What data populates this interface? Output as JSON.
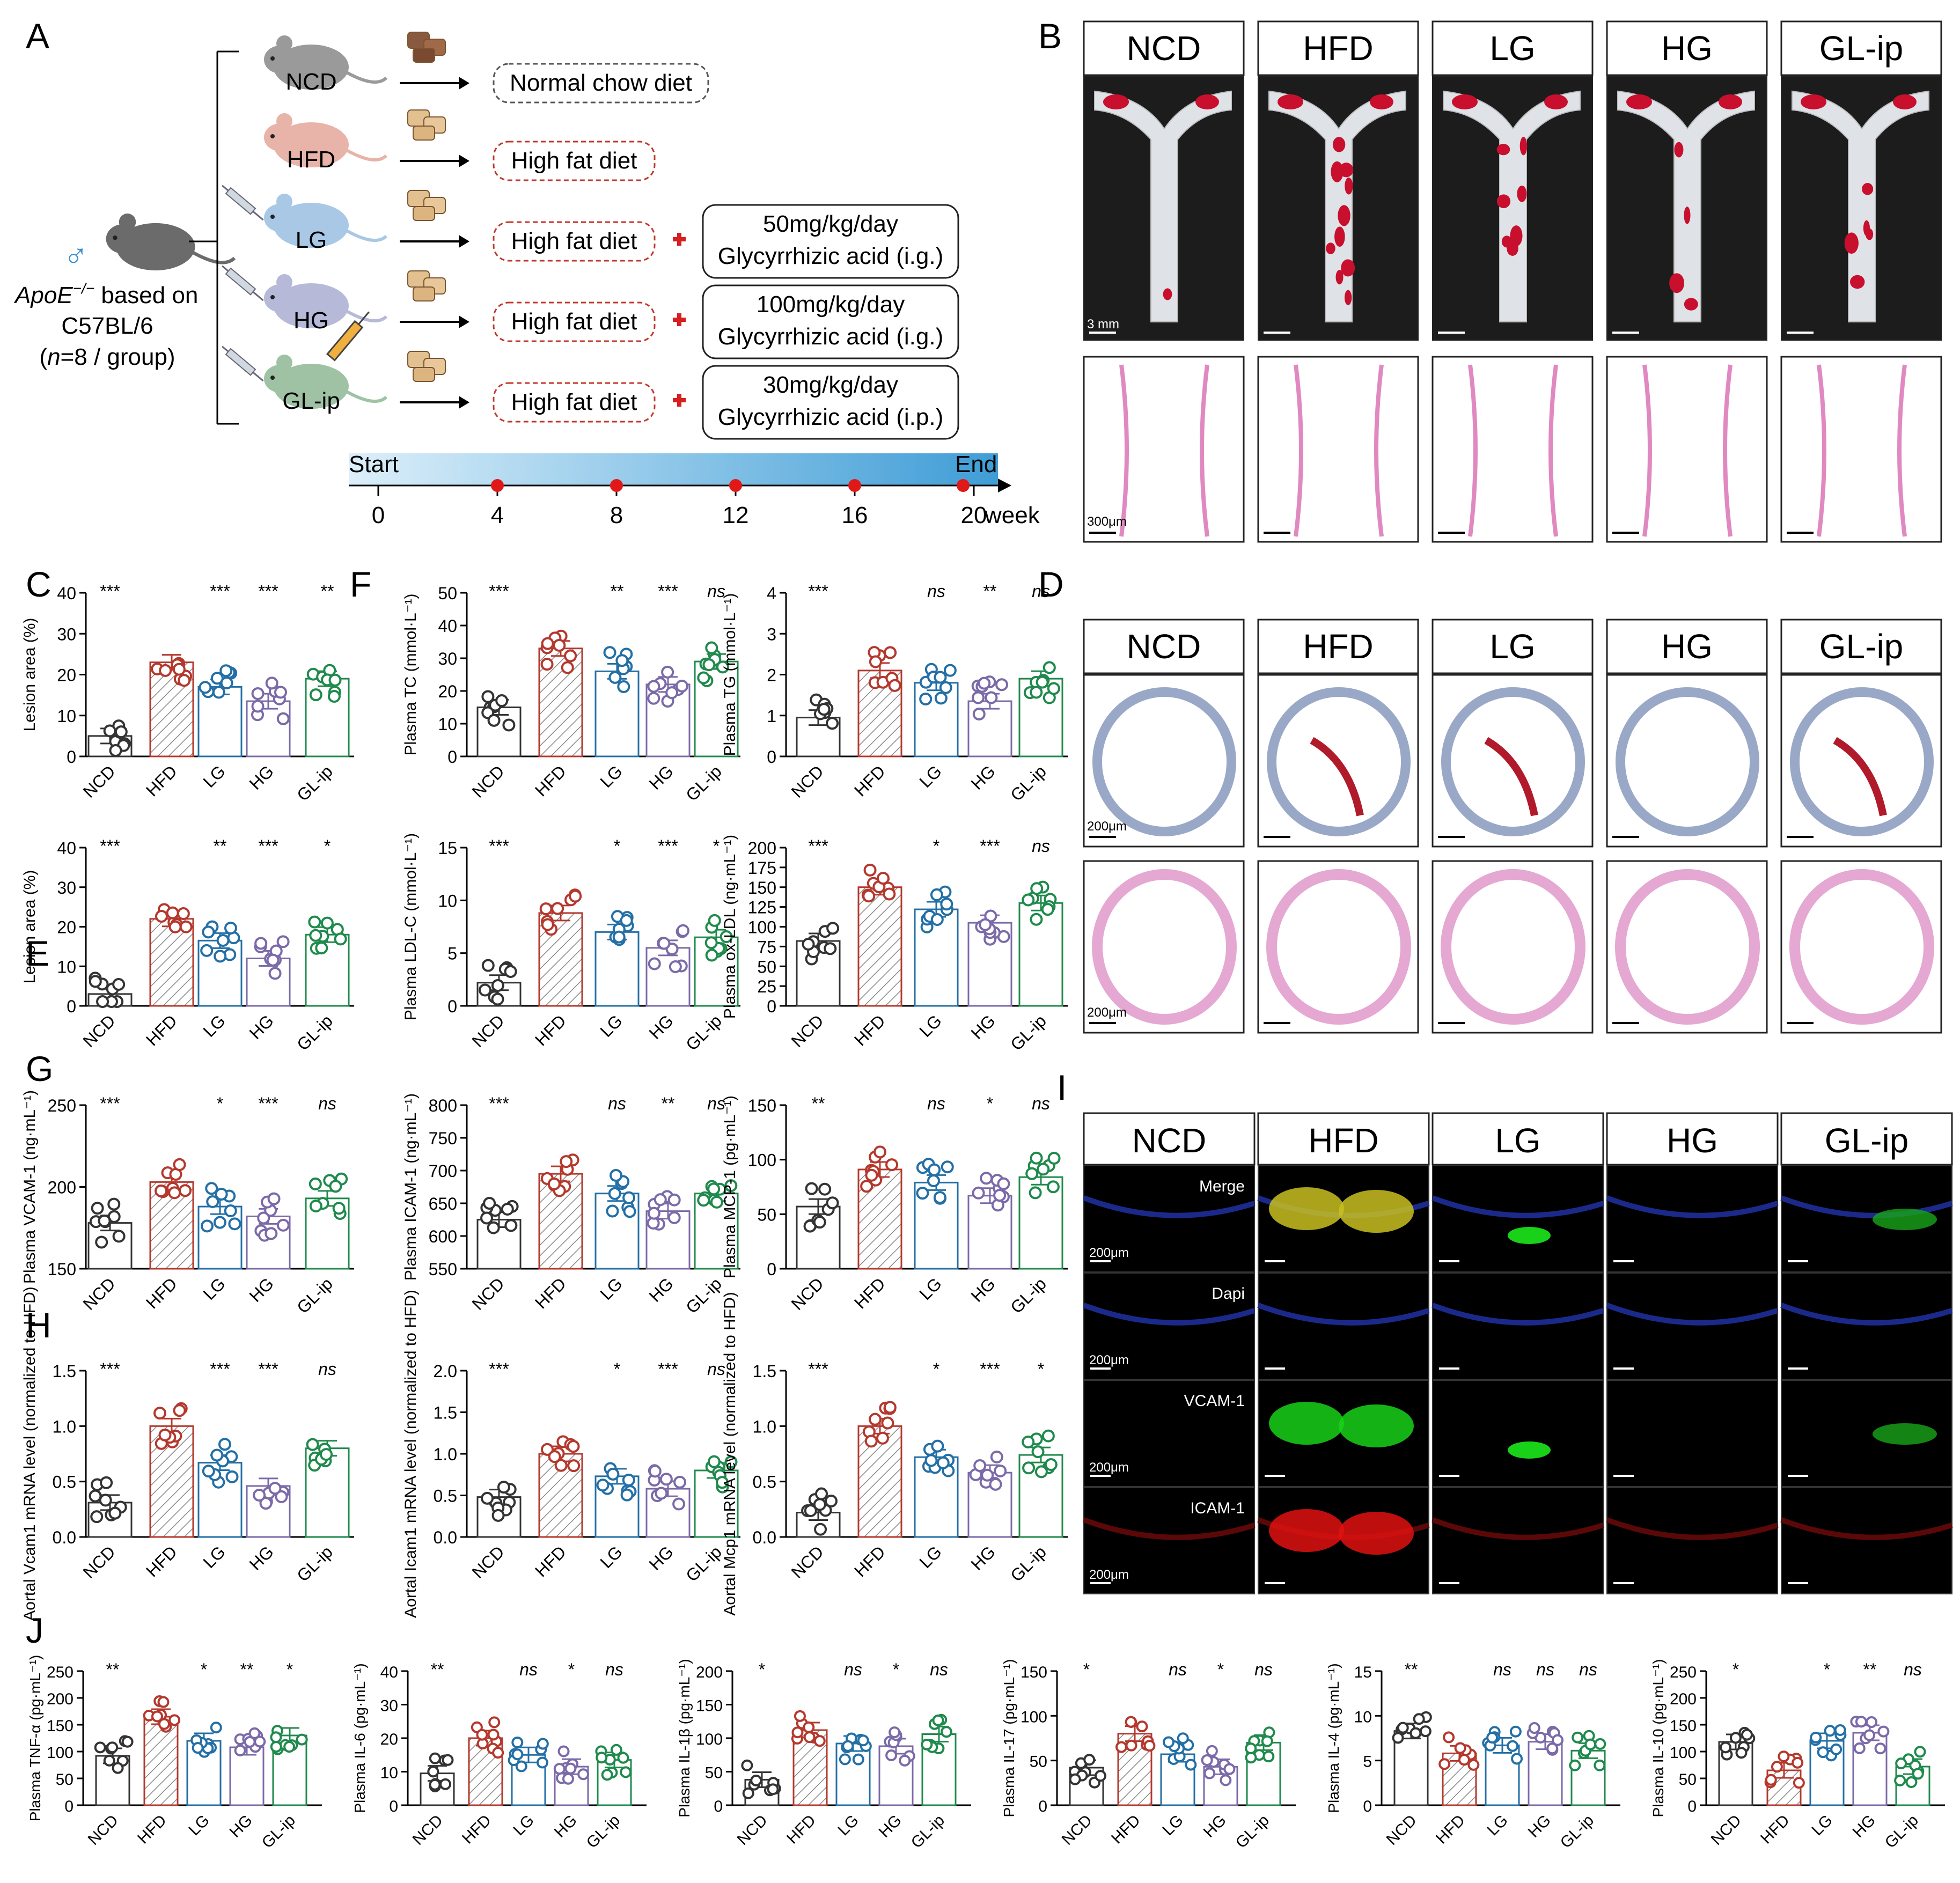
{
  "panel_letters": [
    "A",
    "B",
    "C",
    "D",
    "E",
    "F",
    "G",
    "H",
    "I",
    "J"
  ],
  "groups": [
    "NCD",
    "HFD",
    "LG",
    "HG",
    "GL-ip"
  ],
  "colors": {
    "NCD": "#333333",
    "HFD": "#b5382d",
    "LG": "#236fa6",
    "HG": "#7b6aa8",
    "GL-ip": "#1f8a4c",
    "stroke": "#111111"
  },
  "panelA": {
    "species_symbol": "♂",
    "mouse_line1": "ApoE",
    "mouse_sup": "−/−",
    "mouse_line1_suffix": " based on",
    "mouse_line2": "C57BL/6",
    "mouse_line3_pre": "(",
    "mouse_line3_n": "n",
    "mouse_line3_post": "=8 / group)",
    "rows": [
      {
        "group": "NCD",
        "diet": "Normal chow diet",
        "treatment_dose": "",
        "treatment_name": "",
        "syringe": false
      },
      {
        "group": "HFD",
        "diet": "High fat diet",
        "treatment_dose": "",
        "treatment_name": "",
        "syringe": false
      },
      {
        "group": "LG",
        "diet": "High fat diet",
        "treatment_dose": "50mg/kg/day",
        "treatment_name": "Glycyrrhizic acid (i.g.)",
        "syringe": true
      },
      {
        "group": "HG",
        "diet": "High fat diet",
        "treatment_dose": "100mg/kg/day",
        "treatment_name": "Glycyrrhizic acid (i.g.)",
        "syringe": true
      },
      {
        "group": "GL-ip",
        "diet": "High fat diet",
        "treatment_dose": "30mg/kg/day",
        "treatment_name": "Glycyrrhizic acid (i.p.)",
        "syringe": true
      }
    ],
    "timeline": {
      "start_label": "Start",
      "end_label": "End",
      "ticks": [
        "0",
        "4",
        "8",
        "12",
        "16",
        "20"
      ],
      "unit": "week"
    }
  },
  "panelB": {
    "headers": [
      "NCD",
      "HFD",
      "LG",
      "HG",
      "GL-ip"
    ],
    "scale_top": "3 mm",
    "scale_bottom": "300μm"
  },
  "panelD": {
    "headers": [
      "NCD",
      "HFD",
      "LG",
      "HG",
      "GL-ip"
    ],
    "scale_top": "200μm",
    "scale_bottom": "200μm"
  },
  "panelI": {
    "headers": [
      "NCD",
      "HFD",
      "LG",
      "HG",
      "GL-ip"
    ],
    "rows": [
      "Merge",
      "Dapi",
      "VCAM-1",
      "ICAM-1"
    ],
    "scale": "200μm"
  },
  "chart_data": [
    {
      "id": "C",
      "type": "bar",
      "ylabel": "Lesion area (%)",
      "ylim": [
        0,
        40
      ],
      "yticks": [
        "0",
        "10",
        "20",
        "30",
        "40"
      ],
      "categories": [
        "NCD",
        "HFD",
        "LG",
        "HG",
        "GL-ip"
      ],
      "values": [
        5,
        23,
        17,
        13.5,
        19
      ],
      "sig": [
        "***",
        "",
        "***",
        "***",
        "**"
      ]
    },
    {
      "id": "F1",
      "type": "bar",
      "ylabel": "Plasma TC (mmol·L⁻¹)",
      "ylim": [
        0,
        50
      ],
      "yticks": [
        "0",
        "10",
        "20",
        "30",
        "40",
        "50"
      ],
      "categories": [
        "NCD",
        "HFD",
        "LG",
        "HG",
        "GL-ip"
      ],
      "values": [
        15,
        33,
        26,
        22,
        29
      ],
      "sig": [
        "***",
        "",
        "**",
        "***",
        "ns"
      ]
    },
    {
      "id": "F2",
      "type": "bar",
      "ylabel": "Plasma TG (mmol·L⁻¹)",
      "ylim": [
        0,
        4
      ],
      "yticks": [
        "0",
        "1",
        "2",
        "3",
        "4"
      ],
      "categories": [
        "NCD",
        "HFD",
        "LG",
        "HG",
        "GL-ip"
      ],
      "values": [
        0.95,
        2.1,
        1.8,
        1.35,
        1.9
      ],
      "sig": [
        "***",
        "",
        "ns",
        "**",
        "ns"
      ]
    },
    {
      "id": "E",
      "type": "bar",
      "ylabel": "Lesion area (%)",
      "ylim": [
        0,
        40
      ],
      "yticks": [
        "0",
        "10",
        "20",
        "30",
        "40"
      ],
      "categories": [
        "NCD",
        "HFD",
        "LG",
        "HG",
        "GL-ip"
      ],
      "values": [
        3,
        22,
        16.5,
        12,
        18
      ],
      "sig": [
        "***",
        "",
        "**",
        "***",
        "*"
      ]
    },
    {
      "id": "F3",
      "type": "bar",
      "ylabel": "Plasma LDL-C (mmol·L⁻¹)",
      "ylim": [
        0,
        15
      ],
      "yticks": [
        "0",
        "5",
        "10",
        "15"
      ],
      "categories": [
        "NCD",
        "HFD",
        "LG",
        "HG",
        "GL-ip"
      ],
      "values": [
        2.2,
        8.8,
        7,
        5.5,
        6.5
      ],
      "sig": [
        "***",
        "",
        "*",
        "***",
        "*"
      ]
    },
    {
      "id": "F4",
      "type": "bar",
      "ylabel": "Plasma ox-LDL (ng·mL⁻¹)",
      "ylim": [
        0,
        200
      ],
      "yticks": [
        "0",
        "25",
        "50",
        "75",
        "100",
        "125",
        "150",
        "175",
        "200"
      ],
      "categories": [
        "NCD",
        "HFD",
        "LG",
        "HG",
        "GL-ip"
      ],
      "values": [
        82,
        150,
        122,
        105,
        130
      ],
      "sig": [
        "***",
        "",
        "*",
        "***",
        "ns"
      ]
    },
    {
      "id": "G1",
      "type": "bar",
      "ylabel": "Plasma VCAM-1 (ng·mL⁻¹)",
      "ylim": [
        150,
        250
      ],
      "yticks": [
        "150",
        "200",
        "250"
      ],
      "categories": [
        "NCD",
        "HFD",
        "LG",
        "HG",
        "GL-ip"
      ],
      "values": [
        178,
        203,
        188,
        182,
        193
      ],
      "sig": [
        "***",
        "",
        "*",
        "***",
        "ns"
      ]
    },
    {
      "id": "G2",
      "type": "bar",
      "ylabel": "Plasma ICAM-1 (ng·mL⁻¹)",
      "ylim": [
        550,
        800
      ],
      "yticks": [
        "550",
        "600",
        "650",
        "700",
        "750",
        "800"
      ],
      "categories": [
        "NCD",
        "HFD",
        "LG",
        "HG",
        "GL-ip"
      ],
      "values": [
        625,
        695,
        665,
        638,
        665
      ],
      "sig": [
        "***",
        "",
        "ns",
        "**",
        "ns"
      ]
    },
    {
      "id": "G3",
      "type": "bar",
      "ylabel": "Plasma MCP-1 (pg·mL⁻¹)",
      "ylim": [
        0,
        150
      ],
      "yticks": [
        "0",
        "50",
        "100",
        "150"
      ],
      "categories": [
        "NCD",
        "HFD",
        "LG",
        "HG",
        "GL-ip"
      ],
      "values": [
        57,
        91,
        79,
        67,
        84
      ],
      "sig": [
        "**",
        "",
        "ns",
        "*",
        "ns"
      ]
    },
    {
      "id": "H1",
      "type": "bar",
      "ylabel": "Aortal Vcam1 mRNA level (normalized to HFD)",
      "ylim": [
        0,
        1.5
      ],
      "yticks": [
        "0.0",
        "0.5",
        "1.0",
        "1.5"
      ],
      "categories": [
        "NCD",
        "HFD",
        "LG",
        "HG",
        "GL-ip"
      ],
      "values": [
        0.31,
        1.0,
        0.67,
        0.46,
        0.8
      ],
      "sig": [
        "***",
        "",
        "***",
        "***",
        "ns"
      ]
    },
    {
      "id": "H2",
      "type": "bar",
      "ylabel": "Aortal Icam1 mRNA level (normalized to HFD)",
      "ylim": [
        0,
        2.0
      ],
      "yticks": [
        "0.0",
        "0.5",
        "1.0",
        "1.5",
        "2.0"
      ],
      "categories": [
        "NCD",
        "HFD",
        "LG",
        "HG",
        "GL-ip"
      ],
      "values": [
        0.48,
        1.0,
        0.73,
        0.58,
        0.8
      ],
      "sig": [
        "***",
        "",
        "*",
        "***",
        "ns"
      ]
    },
    {
      "id": "H3",
      "type": "bar",
      "ylabel": "Aortal Mcp1 mRNA level (normalized to HFD)",
      "ylim": [
        0,
        1.5
      ],
      "yticks": [
        "0.0",
        "0.5",
        "1.0",
        "1.5"
      ],
      "categories": [
        "NCD",
        "HFD",
        "LG",
        "HG",
        "GL-ip"
      ],
      "values": [
        0.22,
        1.0,
        0.72,
        0.58,
        0.74
      ],
      "sig": [
        "***",
        "",
        "*",
        "***",
        "*"
      ]
    },
    {
      "id": "J1",
      "type": "bar",
      "ylabel": "Plasma TNF-α (pg·mL⁻¹)",
      "ylim": [
        0,
        250
      ],
      "yticks": [
        "0",
        "50",
        "100",
        "150",
        "200",
        "250"
      ],
      "categories": [
        "NCD",
        "HFD",
        "LG",
        "HG",
        "GL-ip"
      ],
      "values": [
        92,
        165,
        120,
        108,
        130
      ],
      "sig": [
        "**",
        "",
        "*",
        "**",
        "*"
      ]
    },
    {
      "id": "J2",
      "type": "bar",
      "ylabel": "Plasma IL-6 (pg·mL⁻¹)",
      "ylim": [
        0,
        40
      ],
      "yticks": [
        "0",
        "10",
        "20",
        "30",
        "40"
      ],
      "categories": [
        "NCD",
        "HFD",
        "LG",
        "HG",
        "GL-ip"
      ],
      "values": [
        9.5,
        20,
        15,
        11.5,
        13.5
      ],
      "sig": [
        "**",
        "",
        "ns",
        "*",
        "ns"
      ]
    },
    {
      "id": "J3",
      "type": "bar",
      "ylabel": "Plasma IL-1β (pg·mL⁻¹)",
      "ylim": [
        0,
        200
      ],
      "yticks": [
        "0",
        "50",
        "100",
        "150",
        "200"
      ],
      "categories": [
        "NCD",
        "HFD",
        "LG",
        "HG",
        "GL-ip"
      ],
      "values": [
        38,
        112,
        92,
        88,
        106
      ],
      "sig": [
        "*",
        "",
        "ns",
        "*",
        "ns"
      ]
    },
    {
      "id": "J4",
      "type": "bar",
      "ylabel": "Plasma IL-17 (pg·mL⁻¹)",
      "ylim": [
        0,
        150
      ],
      "yticks": [
        "0",
        "50",
        "100",
        "150"
      ],
      "categories": [
        "NCD",
        "HFD",
        "LG",
        "HG",
        "GL-ip"
      ],
      "values": [
        42,
        80,
        57,
        43,
        70
      ],
      "sig": [
        "*",
        "",
        "ns",
        "*",
        "ns"
      ]
    },
    {
      "id": "J5",
      "type": "bar",
      "ylabel": "Plasma IL-4 (pg·mL⁻¹)",
      "ylim": [
        0,
        15
      ],
      "yticks": [
        "0",
        "5",
        "10",
        "15"
      ],
      "categories": [
        "NCD",
        "HFD",
        "LG",
        "HG",
        "GL-ip"
      ],
      "values": [
        8.3,
        5.8,
        6.7,
        7.1,
        6.1
      ],
      "sig": [
        "**",
        "",
        "ns",
        "ns",
        "ns"
      ]
    },
    {
      "id": "J6",
      "type": "bar",
      "ylabel": "Plasma IL-10 (pg·mL⁻¹)",
      "ylim": [
        0,
        250
      ],
      "yticks": [
        "0",
        "50",
        "100",
        "150",
        "200",
        "250"
      ],
      "categories": [
        "NCD",
        "HFD",
        "LG",
        "HG",
        "GL-ip"
      ],
      "values": [
        118,
        65,
        120,
        135,
        72
      ],
      "sig": [
        "*",
        "",
        "*",
        "**",
        "ns"
      ]
    }
  ]
}
